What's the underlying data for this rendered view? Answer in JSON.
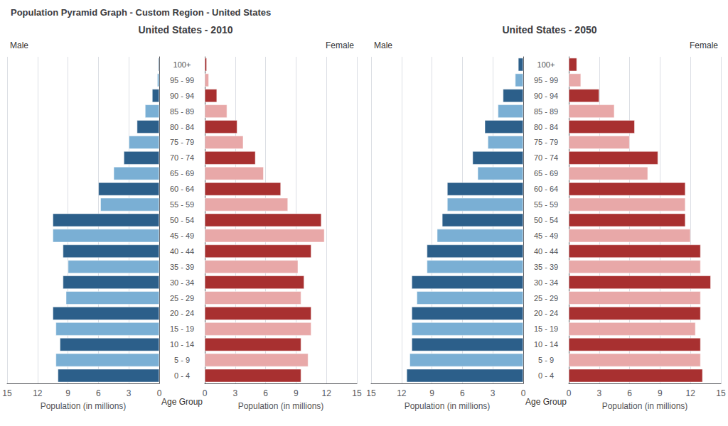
{
  "title": "Population Pyramid Graph - Custom Region - United States",
  "chart_data": [
    {
      "type": "bar",
      "orientation": "horizontal",
      "title": "United States - 2010",
      "xlabel": "Population (in millions)",
      "ylabel": "Age Group",
      "categories": [
        "0 - 4",
        "5 - 9",
        "10 - 14",
        "15 - 19",
        "20 - 24",
        "25 - 29",
        "30 - 34",
        "35 - 39",
        "40 - 44",
        "45 - 49",
        "50 - 54",
        "55 - 59",
        "60 - 64",
        "65 - 69",
        "70 - 74",
        "75 - 79",
        "80 - 84",
        "85 - 89",
        "90 - 94",
        "95 - 99",
        "100+"
      ],
      "xlim": [
        0,
        15
      ],
      "xticks": [
        0,
        3,
        6,
        9,
        12,
        15
      ],
      "grid": true,
      "series": [
        {
          "name": "Male",
          "colors": [
            "#2c5f8a",
            "#7aafd4",
            "#2c5f8a",
            "#7aafd4",
            "#2c5f8a",
            "#7aafd4",
            "#2c5f8a",
            "#7aafd4",
            "#2c5f8a",
            "#7aafd4",
            "#2c5f8a",
            "#7aafd4",
            "#2c5f8a",
            "#7aafd4",
            "#2c5f8a",
            "#7aafd4",
            "#2c5f8a",
            "#7aafd4",
            "#2c5f8a",
            "#7aafd4",
            "#2c5f8a"
          ],
          "values": [
            10.0,
            10.2,
            9.8,
            10.2,
            10.5,
            9.2,
            9.5,
            9.0,
            9.5,
            10.5,
            10.5,
            5.8,
            6.0,
            4.5,
            3.5,
            3.0,
            2.2,
            1.4,
            0.7,
            0.2,
            0.1
          ]
        },
        {
          "name": "Female",
          "colors": [
            "#a83030",
            "#e8a8a8",
            "#a83030",
            "#e8a8a8",
            "#a83030",
            "#e8a8a8",
            "#a83030",
            "#e8a8a8",
            "#a83030",
            "#e8a8a8",
            "#a83030",
            "#e8a8a8",
            "#a83030",
            "#e8a8a8",
            "#a83030",
            "#e8a8a8",
            "#a83030",
            "#e8a8a8",
            "#a83030",
            "#e8a8a8",
            "#a83030"
          ],
          "values": [
            9.5,
            10.2,
            9.5,
            10.5,
            10.5,
            9.5,
            9.8,
            9.2,
            10.5,
            11.8,
            11.5,
            8.2,
            7.5,
            5.8,
            5.0,
            3.8,
            3.2,
            2.2,
            1.2,
            0.4,
            0.2
          ]
        }
      ]
    },
    {
      "type": "bar",
      "orientation": "horizontal",
      "title": "United States - 2050",
      "xlabel": "Population (in millions)",
      "ylabel": "Age Group",
      "categories": [
        "0 - 4",
        "5 - 9",
        "10 - 14",
        "15 - 19",
        "20 - 24",
        "25 - 29",
        "30 - 34",
        "35 - 39",
        "40 - 44",
        "45 - 49",
        "50 - 54",
        "55 - 59",
        "60 - 64",
        "65 - 69",
        "70 - 74",
        "75 - 79",
        "80 - 84",
        "85 - 89",
        "90 - 94",
        "95 - 99",
        "100+"
      ],
      "xlim": [
        0,
        15
      ],
      "xticks": [
        0,
        3,
        6,
        9,
        12,
        15
      ],
      "grid": true,
      "series": [
        {
          "name": "Male",
          "colors": [
            "#2c5f8a",
            "#7aafd4",
            "#2c5f8a",
            "#7aafd4",
            "#2c5f8a",
            "#7aafd4",
            "#2c5f8a",
            "#7aafd4",
            "#2c5f8a",
            "#7aafd4",
            "#2c5f8a",
            "#7aafd4",
            "#2c5f8a",
            "#7aafd4",
            "#2c5f8a",
            "#7aafd4",
            "#2c5f8a",
            "#7aafd4",
            "#2c5f8a",
            "#7aafd4",
            "#2c5f8a"
          ],
          "values": [
            11.5,
            11.2,
            11.0,
            11.0,
            11.0,
            10.5,
            11.0,
            9.5,
            9.5,
            8.5,
            8.0,
            7.5,
            7.5,
            4.5,
            5.0,
            3.5,
            3.8,
            2.5,
            2.0,
            0.8,
            0.5
          ]
        },
        {
          "name": "Female",
          "colors": [
            "#a83030",
            "#e8a8a8",
            "#a83030",
            "#e8a8a8",
            "#a83030",
            "#e8a8a8",
            "#a83030",
            "#e8a8a8",
            "#a83030",
            "#e8a8a8",
            "#a83030",
            "#e8a8a8",
            "#a83030",
            "#e8a8a8",
            "#a83030",
            "#e8a8a8",
            "#a83030",
            "#e8a8a8",
            "#a83030",
            "#e8a8a8",
            "#a83030"
          ],
          "values": [
            13.2,
            13.0,
            13.0,
            12.5,
            13.0,
            13.0,
            14.0,
            13.0,
            13.0,
            12.0,
            11.5,
            11.5,
            11.5,
            7.8,
            8.8,
            6.0,
            6.5,
            4.5,
            3.0,
            1.2,
            0.8
          ]
        }
      ]
    }
  ]
}
